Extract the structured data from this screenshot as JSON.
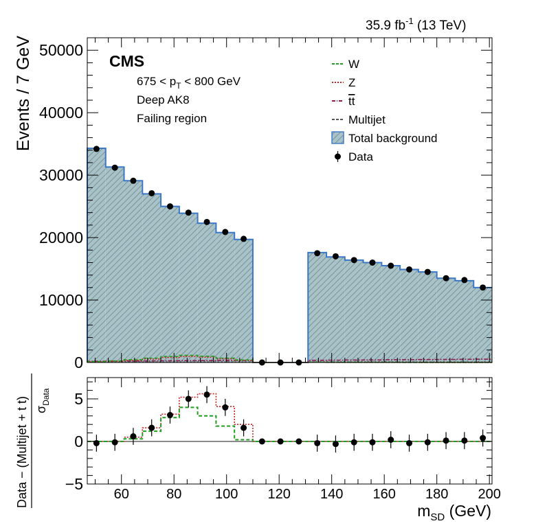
{
  "lumi_label": "35.9 fb",
  "lumi_exponent": "-1",
  "energy_label": "(13 TeV)",
  "cms_label": "CMS",
  "info": {
    "pt_prefix": "675 < p",
    "pt_sub": "T",
    "pt_suffix": " < 800 GeV",
    "tagger": "Deep AK8",
    "region": "Failing region"
  },
  "colors": {
    "total_fill": "#9fb9c0",
    "total_line": "#3a78c6",
    "w": "#1f9e1f",
    "z": "#cc1f1f",
    "ttbar": "#8a1c4e",
    "multijet": "#555555",
    "data": "#000000"
  },
  "chart_data": [
    {
      "type": "bar",
      "panel": "main",
      "xlim": [
        47,
        201
      ],
      "ylim": [
        0,
        52000
      ],
      "ylabel": "Events / 7 GeV",
      "yticks": [
        0,
        10000,
        20000,
        30000,
        40000,
        50000
      ],
      "bin_edges": [
        47,
        54,
        61,
        68,
        75,
        82,
        89,
        96,
        103,
        110,
        117,
        124,
        131,
        138,
        145,
        152,
        159,
        166,
        173,
        180,
        187,
        194,
        201
      ],
      "legend": [
        {
          "label": "W",
          "style": "dashed",
          "color": "w"
        },
        {
          "label": "Z",
          "style": "dotted",
          "color": "z"
        },
        {
          "label": "tt",
          "overline": true,
          "style": "dashdot",
          "color": "ttbar"
        },
        {
          "label": "Multijet",
          "style": "dashed",
          "color": "multijet"
        },
        {
          "label": "Total background",
          "style": "band",
          "color": "total_fill"
        },
        {
          "label": "Data",
          "style": "marker",
          "color": "data"
        }
      ],
      "series": [
        {
          "name": "Total background",
          "values": [
            34300,
            31300,
            29100,
            27000,
            25000,
            23900,
            22300,
            20800,
            19700,
            0,
            0,
            0,
            17600,
            16900,
            16400,
            16000,
            15500,
            14900,
            14500,
            13500,
            13100,
            12000
          ]
        },
        {
          "name": "Data",
          "values": [
            34200,
            31200,
            29100,
            27100,
            25000,
            24000,
            22500,
            20900,
            19800,
            0,
            0,
            0,
            17500,
            17000,
            16400,
            16000,
            15500,
            14900,
            14500,
            13500,
            13200,
            12000
          ]
        },
        {
          "name": "W",
          "values": [
            150,
            250,
            450,
            700,
            950,
            1150,
            1000,
            700,
            400,
            0,
            0,
            0,
            30,
            20,
            20,
            15,
            15,
            10,
            10,
            10,
            10,
            10
          ]
        },
        {
          "name": "Z",
          "values": [
            100,
            200,
            350,
            550,
            800,
            950,
            850,
            600,
            350,
            0,
            0,
            0,
            30,
            25,
            20,
            20,
            15,
            15,
            10,
            10,
            10,
            10
          ]
        },
        {
          "name": "tt",
          "values": [
            200,
            220,
            240,
            260,
            280,
            300,
            310,
            320,
            330,
            0,
            0,
            0,
            350,
            370,
            390,
            410,
            430,
            450,
            470,
            490,
            510,
            530
          ]
        },
        {
          "name": "Multijet",
          "values": [
            50,
            50,
            60,
            60,
            70,
            70,
            80,
            80,
            80,
            0,
            0,
            0,
            90,
            90,
            90,
            90,
            90,
            80,
            80,
            80,
            80,
            80
          ]
        }
      ]
    },
    {
      "type": "line",
      "panel": "ratio",
      "xlim": [
        47,
        201
      ],
      "ylim": [
        -5,
        7.5
      ],
      "xlabel": "m",
      "xlabel_sub": "SD",
      "xlabel_suffix": " (GeV)",
      "ylabel_num": "Data − (Multijet + t t)",
      "ylabel_den": "σ",
      "ylabel_den_sub": "Data",
      "yticks": [
        -5,
        0,
        5
      ],
      "xticks": [
        60,
        80,
        100,
        120,
        140,
        160,
        180,
        200
      ],
      "bin_edges": [
        47,
        54,
        61,
        68,
        75,
        82,
        89,
        96,
        103,
        110,
        117,
        124,
        131,
        138,
        145,
        152,
        159,
        166,
        173,
        180,
        187,
        194,
        201
      ],
      "series": [
        {
          "name": "Data",
          "values": [
            -0.2,
            -0.1,
            0.6,
            1.6,
            3.1,
            5.0,
            5.5,
            4.0,
            1.6,
            0.0,
            0.0,
            0.0,
            -0.2,
            -0.3,
            -0.1,
            -0.1,
            0.2,
            -0.2,
            -0.1,
            0.1,
            0.1,
            0.4
          ],
          "errors": [
            1,
            1,
            1,
            1,
            1,
            1,
            1,
            1,
            1,
            0,
            0,
            0,
            1,
            1,
            1,
            1,
            1,
            1,
            1,
            1,
            1,
            1
          ]
        },
        {
          "name": "W",
          "values": [
            0,
            0,
            0.3,
            1.2,
            2.8,
            4.0,
            3.0,
            1.8,
            0.2,
            0,
            0,
            0,
            0,
            0,
            0,
            0,
            0,
            0,
            0,
            0,
            0,
            0
          ]
        },
        {
          "name": "Z",
          "values": [
            0,
            0,
            0.5,
            1.6,
            3.2,
            5.2,
            5.6,
            4.1,
            2.0,
            0,
            0,
            0,
            0,
            0,
            0,
            0,
            0,
            0,
            0,
            0,
            0,
            0
          ]
        }
      ]
    }
  ]
}
